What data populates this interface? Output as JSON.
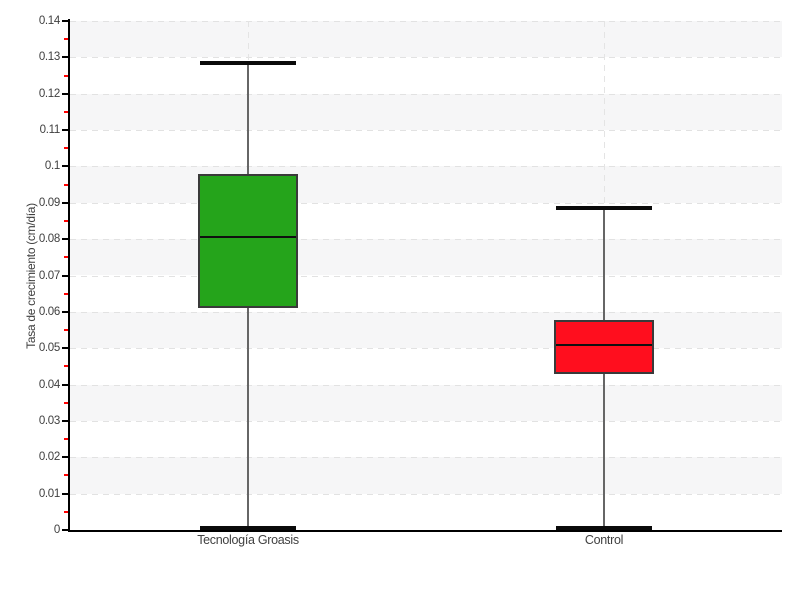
{
  "page": {
    "background": "#ffffff",
    "title": ""
  },
  "chart_data": {
    "type": "boxplot",
    "title": "",
    "xlabel": "",
    "ylabel": "Tasa de crecimiento (cm/día)",
    "ylim": [
      0,
      0.14
    ],
    "y_major_step": 0.01,
    "y_minor_step": 0.005,
    "y_tick_labels": [
      "0",
      "0.01",
      "0.02",
      "0.03",
      "0.04",
      "0.05",
      "0.06",
      "0.07",
      "0.08",
      "0.09",
      "0.1",
      "0.11",
      "0.12",
      "0.13",
      "0.14"
    ],
    "grid": "horizontal dashed gridlines at each 0.01, vertical dashed gridline at each category, alternating light-gray horizontal bands",
    "legend": "none",
    "categories": [
      "Tecnología Groasis",
      "Control"
    ],
    "series": [
      {
        "name": "Tecnología Groasis",
        "whisker_low": 0.0005,
        "q1": 0.061,
        "median": 0.0805,
        "q3": 0.098,
        "whisker_high": 0.1285,
        "fill": "#25a41b"
      },
      {
        "name": "Control",
        "whisker_low": 0.0005,
        "q1": 0.043,
        "median": 0.051,
        "q3": 0.0577,
        "whisker_high": 0.0885,
        "fill": "#ff0e1e"
      }
    ],
    "colors": {
      "green_box": "#25a41b",
      "red_box": "#ff0e1e",
      "box_border": "#3a3a3a",
      "median_line": "#101010",
      "whisker_line": "#666666",
      "whisker_cap": "#0a0a0a",
      "band": "#f6f6f7",
      "gridline": "#e2e2e2",
      "axis": "#000000",
      "minor_tick": "#ff0000",
      "tick_text": "#404040"
    }
  }
}
